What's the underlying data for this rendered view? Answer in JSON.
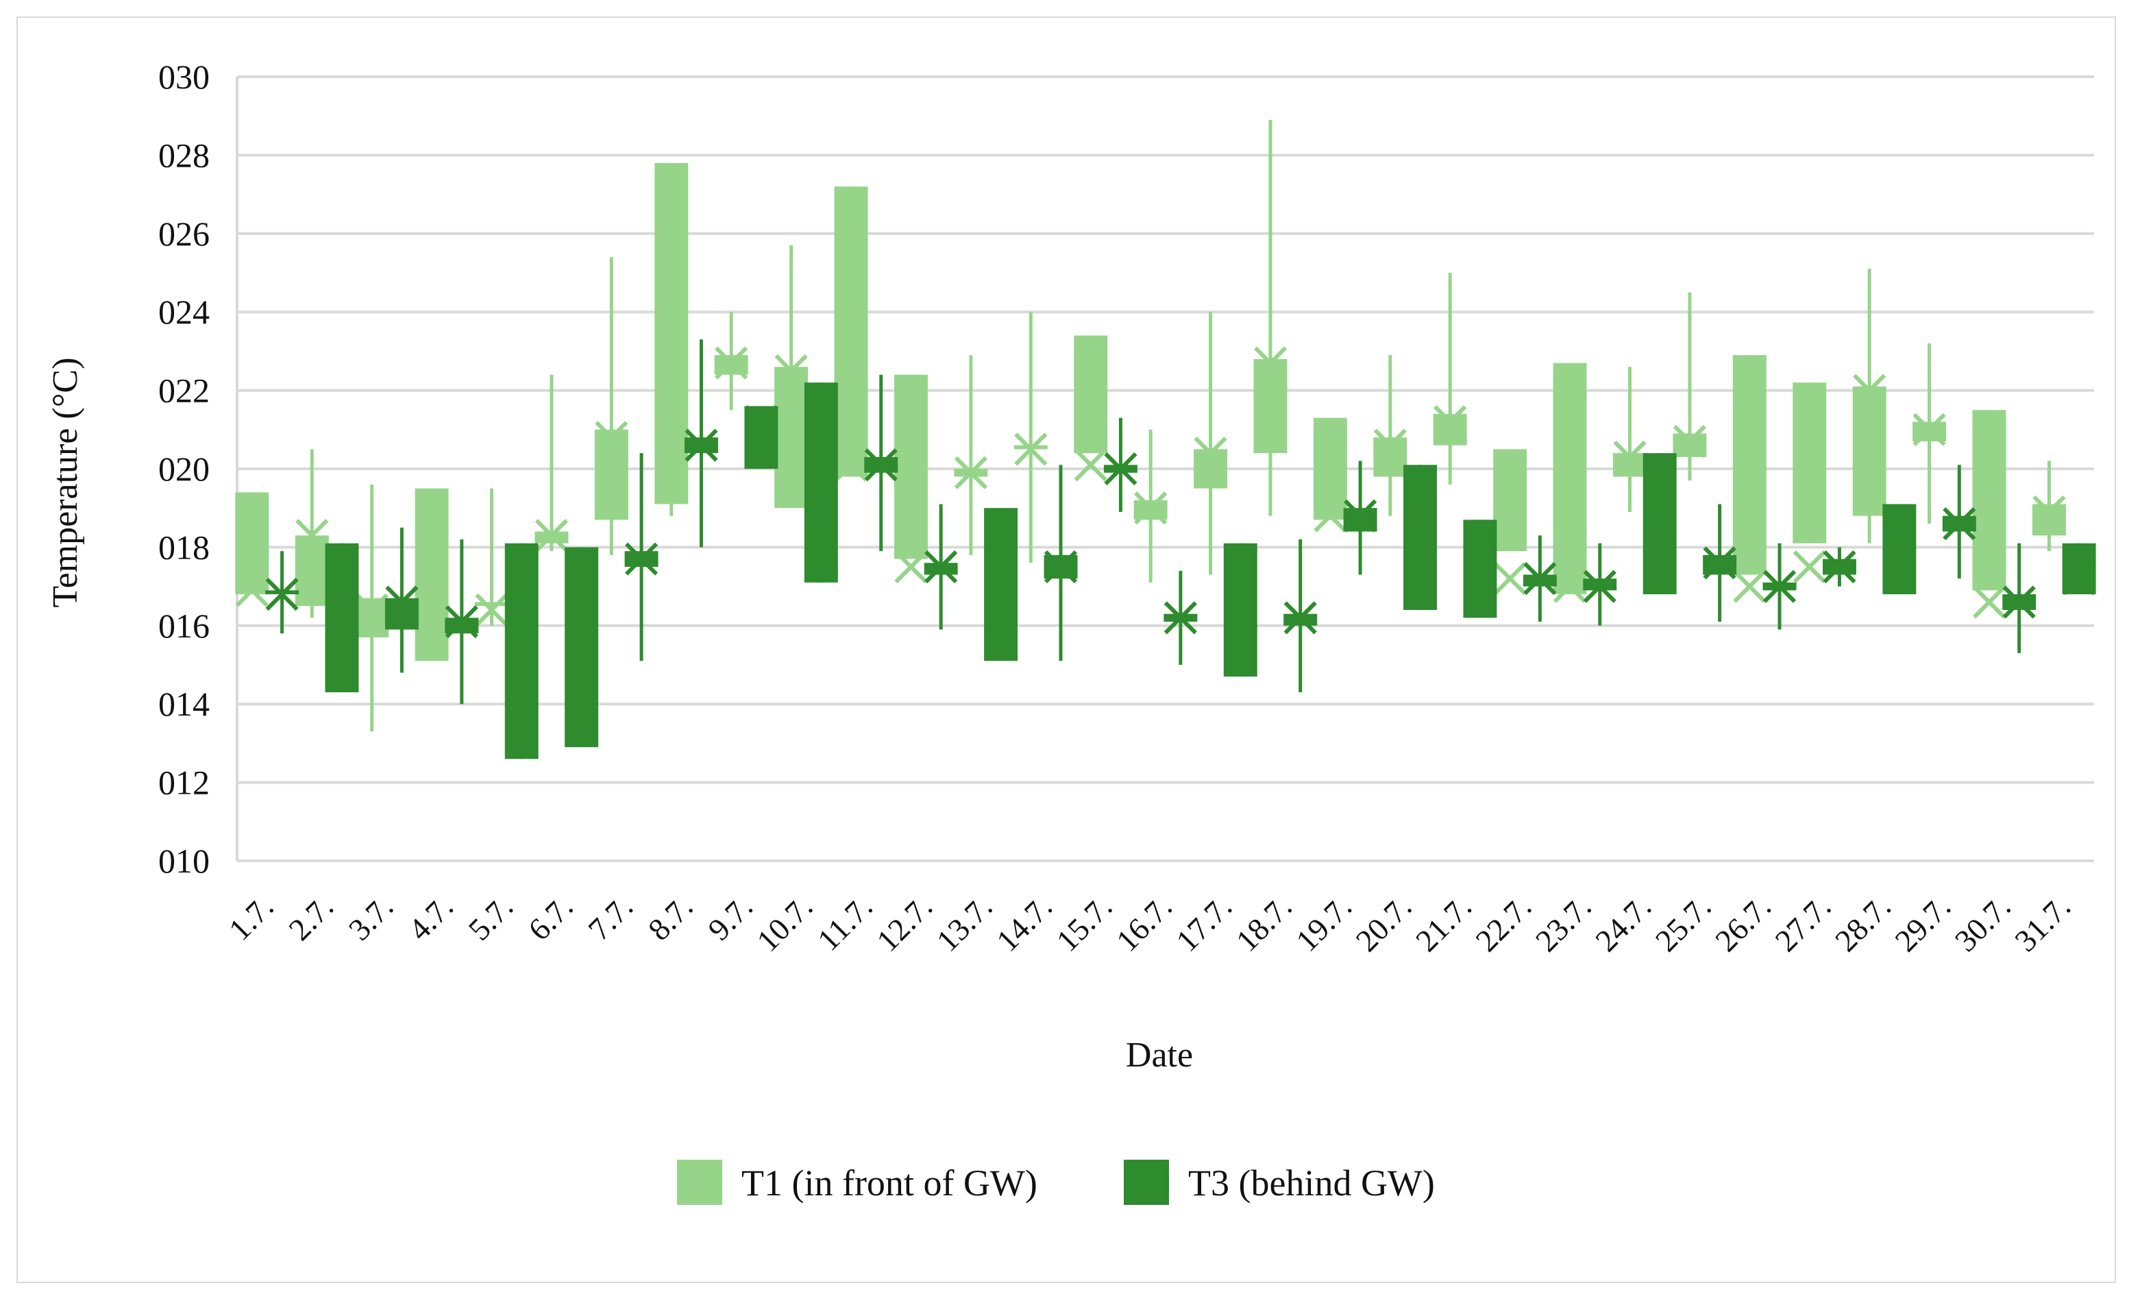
{
  "chart_data": {
    "type": "box",
    "xlabel": "Date",
    "ylabel": "Temperature (°C)",
    "ylim": [
      10,
      30
    ],
    "ytick_labels": [
      "010",
      "012",
      "014",
      "016",
      "018",
      "020",
      "022",
      "024",
      "026",
      "028",
      "030"
    ],
    "grid": true,
    "legend_position": "bottom",
    "categories": [
      "1.7.",
      "2.7.",
      "3.7.",
      "4.7.",
      "5.7.",
      "6.7.",
      "7.7.",
      "8.7.",
      "9.7.",
      "10.7.",
      "11.7.",
      "12.7.",
      "13.7.",
      "14.7.",
      "15.7.",
      "16.7.",
      "17.7.",
      "18.7.",
      "19.7.",
      "20.7.",
      "21.7.",
      "22.7.",
      "23.7.",
      "24.7.",
      "25.7.",
      "26.7.",
      "27.7.",
      "28.7.",
      "29.7.",
      "30.7.",
      "31.7."
    ],
    "series": [
      {
        "name": "T1 (in front of GW)",
        "color": "#96d48a",
        "box_low": [
          16.8,
          16.5,
          15.7,
          15.1,
          16.5,
          18.1,
          18.7,
          19.1,
          22.4,
          19.0,
          19.8,
          17.7,
          19.8,
          20.5,
          20.4,
          18.7,
          19.5,
          20.4,
          18.7,
          19.8,
          20.6,
          17.9,
          16.8,
          19.8,
          20.3,
          17.3,
          18.1,
          18.8,
          20.7,
          16.9,
          18.3
        ],
        "box_high": [
          19.4,
          18.3,
          16.7,
          19.5,
          16.6,
          18.4,
          21.0,
          27.8,
          22.9,
          22.6,
          27.2,
          22.4,
          20.0,
          20.6,
          23.4,
          19.2,
          20.5,
          22.8,
          21.3,
          20.8,
          21.4,
          20.5,
          22.7,
          20.4,
          20.9,
          22.9,
          22.2,
          22.1,
          21.2,
          21.5,
          19.1
        ],
        "whisker_min": [
          16.8,
          16.2,
          13.3,
          15.1,
          16.0,
          17.9,
          17.8,
          18.8,
          21.5,
          19.0,
          19.8,
          17.7,
          17.8,
          17.6,
          20.4,
          17.1,
          17.3,
          18.8,
          18.7,
          18.8,
          19.6,
          17.9,
          16.8,
          18.9,
          19.7,
          17.3,
          18.1,
          18.1,
          18.6,
          16.9,
          17.9
        ],
        "whisker_max": [
          19.4,
          20.5,
          19.6,
          19.5,
          19.5,
          22.4,
          25.4,
          27.8,
          24.0,
          25.7,
          27.2,
          22.4,
          22.9,
          24.0,
          23.4,
          21.0,
          24.0,
          28.9,
          21.3,
          22.9,
          25.0,
          20.5,
          22.7,
          22.6,
          24.5,
          22.9,
          22.2,
          25.1,
          23.2,
          21.5,
          20.2
        ],
        "mean": [
          16.9,
          18.3,
          16.4,
          16.1,
          16.4,
          18.3,
          20.8,
          20.6,
          22.7,
          22.5,
          20.1,
          17.5,
          19.9,
          20.5,
          20.1,
          19.0,
          20.4,
          22.7,
          18.8,
          20.6,
          21.2,
          17.2,
          17.0,
          20.3,
          20.7,
          17.0,
          17.5,
          22.0,
          21.0,
          16.6,
          18.9
        ]
      },
      {
        "name": "T3 (behind GW)",
        "color": "#2e8b2e",
        "box_low": [
          16.8,
          14.3,
          15.9,
          15.8,
          12.6,
          12.9,
          17.5,
          20.4,
          20.0,
          17.1,
          19.9,
          17.3,
          15.1,
          17.2,
          19.9,
          16.1,
          14.7,
          16.0,
          18.4,
          16.4,
          16.2,
          17.0,
          16.9,
          16.8,
          17.3,
          16.9,
          17.3,
          16.8,
          18.4,
          16.4,
          16.8
        ],
        "box_high": [
          16.9,
          18.1,
          16.7,
          16.2,
          18.1,
          18.0,
          17.9,
          20.8,
          21.6,
          22.2,
          20.3,
          17.6,
          19.0,
          17.8,
          20.1,
          16.3,
          18.1,
          16.3,
          19.0,
          20.1,
          18.7,
          17.3,
          17.2,
          20.4,
          17.8,
          17.1,
          17.7,
          19.1,
          18.8,
          16.8,
          18.1
        ],
        "whisker_min": [
          15.8,
          14.3,
          14.8,
          14.0,
          12.6,
          12.9,
          15.1,
          18.0,
          20.0,
          17.1,
          17.9,
          15.9,
          15.1,
          15.1,
          18.9,
          15.0,
          14.7,
          14.3,
          17.3,
          16.4,
          16.2,
          16.1,
          16.0,
          16.8,
          16.1,
          15.9,
          17.0,
          16.8,
          17.2,
          15.3,
          16.8
        ],
        "whisker_max": [
          17.9,
          18.1,
          18.5,
          18.2,
          18.1,
          18.0,
          20.4,
          23.3,
          21.6,
          22.2,
          22.4,
          19.1,
          19.0,
          20.1,
          21.3,
          17.4,
          18.1,
          18.2,
          20.2,
          20.1,
          18.7,
          18.3,
          18.1,
          20.4,
          19.1,
          18.1,
          18.0,
          19.1,
          20.1,
          18.1,
          18.1
        ],
        "mean": [
          16.8,
          16.2,
          16.6,
          16.1,
          16.3,
          16.5,
          17.7,
          20.6,
          21.2,
          20.6,
          20.1,
          17.5,
          17.8,
          17.5,
          20.0,
          16.2,
          16.4,
          16.2,
          18.8,
          18.5,
          17.6,
          17.2,
          17.0,
          18.5,
          17.6,
          17.0,
          17.5,
          17.8,
          18.6,
          16.6,
          17.2
        ]
      }
    ]
  }
}
